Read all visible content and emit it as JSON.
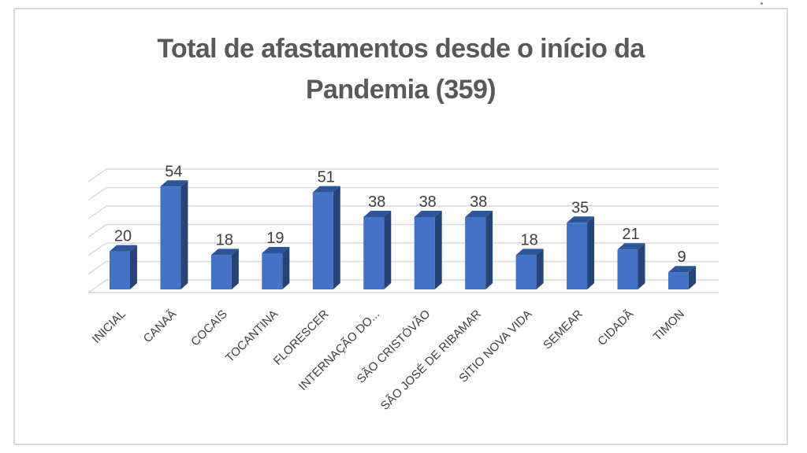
{
  "chart_data": {
    "type": "bar",
    "style": "3d-clustered-column",
    "title": "Total de afastamentos desde o início da Pandemia (359)",
    "title_lines": [
      "Total de afastamentos desde o início da",
      "Pandemia (359)"
    ],
    "total": 359,
    "categories": [
      "INICIAL",
      "CANAÃ",
      "COCAIS",
      "TOCANTINA",
      "FLORESCER",
      "INTERNAÇÃO DO...",
      "SÃO CRISTÓVÃO",
      "SÃO JOSÉ DE RIBAMAR",
      "SÍTIO NOVA VIDA",
      "SEMEAR",
      "CIDADÃ",
      "TIMON"
    ],
    "values": [
      20,
      54,
      18,
      19,
      51,
      38,
      38,
      38,
      18,
      35,
      21,
      9
    ],
    "ylim": [
      0,
      60
    ],
    "grid_interval": 10,
    "legend": "none",
    "data_labels": "above-bars",
    "colors": {
      "bar_front": "#4472C4",
      "bar_top": "#2F5597",
      "bar_side": "#264478",
      "gridline": "#D9D9D9",
      "title": "#595959",
      "value_label": "#3F3F3F",
      "category_label": "#404040",
      "slide_border": "#D9D9D9"
    }
  }
}
